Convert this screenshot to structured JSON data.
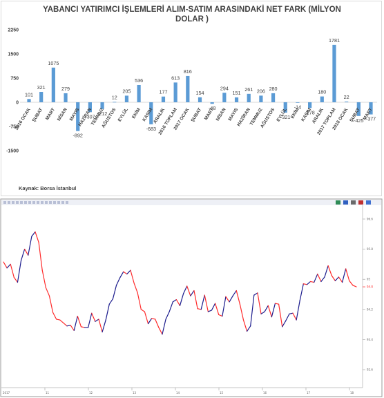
{
  "chart_data": [
    {
      "type": "bar",
      "title": "YABANCI YATIRIMCI İŞLEMLERİ ALIM-SATIM ARASINDAKİ NET FARK (MİLYON DOLAR )",
      "title_lines": [
        "YABANCI YATIRIMCI İŞLEMLERİ ALIM-SATIM ARASINDAKİ NET FARK (MİLYON",
        "DOLAR )"
      ],
      "categories": [
        "2016 OCAK",
        "ŞUBAT",
        "MART",
        "NİSAN",
        "MAYIS",
        "HAZİRAN",
        "TEMMUZ",
        "AĞUSTOS",
        "EYLÜL",
        "EKİM",
        "KASIM",
        "ARALIK",
        "2016 TOPLAM",
        "2017 OCAK",
        "ŞUBAT",
        "MART",
        "NİSAN",
        "MAYIS",
        "HAZİRAN",
        "TEMMUZ",
        "AĞUSTOS",
        "EYLÜL",
        "EKİM",
        "KASIM",
        "ARALIK",
        "2017 TOPLAM",
        "2018 OCAK",
        "ŞUBAT",
        "MART"
      ],
      "values": [
        101,
        321,
        1075,
        279,
        -892,
        -307,
        -212,
        12,
        205,
        536,
        -683,
        177,
        613,
        816,
        154,
        -48,
        294,
        151,
        261,
        206,
        280,
        -321,
        -14,
        -178,
        180,
        1781,
        22,
        -425,
        -377
      ],
      "data_labels": [
        "101",
        "321",
        "1075",
        "279",
        "-892",
        "-307",
        "-212",
        "12",
        "205",
        "536",
        "-683",
        "177",
        "613",
        "816",
        "154",
        "-48",
        "294",
        "151",
        "261",
        "206",
        "280",
        "-321",
        "-14",
        "-178",
        "180",
        "1781",
        "22",
        "-425",
        "-377"
      ],
      "y_ticks": [
        "2250",
        "1500",
        "750",
        "0",
        "-750",
        "-1500"
      ],
      "ylim": [
        -1500,
        2250
      ],
      "xlabel": "",
      "ylabel": "",
      "grid": false,
      "legend": "none",
      "colors": {
        "bar": "#5b9bd5",
        "text": "#404040",
        "axis": "#d9d9d9"
      },
      "source": "Kaynak: Borsa İstanbul"
    },
    {
      "type": "line",
      "title": "",
      "xlabel": "",
      "ylabel": "",
      "y_ticks": [
        "96.6",
        "95.8",
        "95",
        "94.2",
        "93.4",
        "92.6"
      ],
      "ylim": [
        92.6,
        96.6
      ],
      "last_value": "94.8",
      "grid": false,
      "legend": "none",
      "colors": {
        "up": "#1a1a8c",
        "down": "#ff2a2a",
        "last": "#ff2a2a"
      },
      "series": [
        {
          "values": [
            95.46,
            95.3,
            95.4,
            95.05,
            94.92,
            95.5,
            95.8,
            95.64,
            96.14,
            96.26,
            95.98,
            95.24,
            94.78,
            94.56,
            94.12,
            93.94,
            93.92,
            93.84,
            93.76,
            93.78,
            93.64,
            94.02,
            93.74,
            93.72,
            93.72,
            94.1,
            93.88,
            93.94,
            93.6,
            93.92,
            94.34,
            94.48,
            94.84,
            95.04,
            95.2,
            95.14,
            95.24,
            94.9,
            94.64,
            94.2,
            94.14,
            93.82,
            93.96,
            93.94,
            93.72,
            93.54,
            93.94,
            94.14,
            94.4,
            94.46,
            94.3,
            94.62,
            94.82,
            94.56,
            94.7,
            94.22,
            94.2,
            94.58,
            94.14,
            94.18,
            94.36,
            94.06,
            94.02,
            94.54,
            94.4,
            94.56,
            94.7,
            94.34,
            93.92,
            93.62,
            93.76,
            94.58,
            94.64,
            94.08,
            94.14,
            94.3,
            94.0,
            94.36,
            94.34,
            93.74,
            93.9,
            94.08,
            94.1,
            93.92,
            94.44,
            94.88,
            94.86,
            94.94,
            94.92,
            95.14,
            94.94,
            95.06,
            95.36,
            95.1,
            94.96,
            95.06,
            94.92,
            95.28,
            94.96,
            94.84,
            94.8
          ]
        }
      ],
      "x_tick_labels": [
        "11",
        "12",
        "13",
        "14",
        "15",
        "16",
        "17",
        "18"
      ],
      "top_axis": [
        {
          "label": "2017",
          "x": 0
        }
      ]
    }
  ],
  "top_panel": {
    "source_label": "Kaynak: Borsa İstanbul"
  },
  "bottom_panel": {
    "toolbar_tabs": [
      "",
      ""
    ]
  }
}
